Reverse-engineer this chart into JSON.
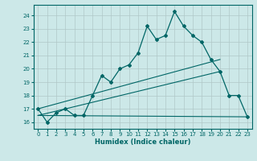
{
  "xlabel": "Humidex (Indice chaleur)",
  "ylabel": "",
  "background_color": "#cce8e8",
  "grid_color": "#b0c8c8",
  "line_color": "#006666",
  "xlim": [
    -0.5,
    23.5
  ],
  "ylim": [
    15.5,
    24.8
  ],
  "xticks": [
    0,
    1,
    2,
    3,
    4,
    5,
    6,
    7,
    8,
    9,
    10,
    11,
    12,
    13,
    14,
    15,
    16,
    17,
    18,
    19,
    20,
    21,
    22,
    23
  ],
  "yticks": [
    16,
    17,
    18,
    19,
    20,
    21,
    22,
    23,
    24
  ],
  "main_series_x": [
    0,
    1,
    2,
    3,
    4,
    5,
    6,
    7,
    8,
    9,
    10,
    11,
    12,
    13,
    14,
    15,
    16,
    17,
    18,
    19,
    20,
    21,
    22,
    23
  ],
  "main_series_y": [
    17.0,
    16.0,
    16.7,
    17.0,
    16.5,
    16.5,
    18.0,
    19.5,
    19.0,
    20.0,
    20.3,
    21.2,
    23.2,
    22.2,
    22.5,
    24.3,
    23.2,
    22.5,
    22.0,
    20.7,
    19.8,
    18.0,
    18.0,
    16.4
  ],
  "line1_x": [
    0,
    23
  ],
  "line1_y": [
    16.5,
    16.4
  ],
  "line2_x": [
    0,
    20
  ],
  "line2_y": [
    17.0,
    20.7
  ],
  "line3_x": [
    0,
    20
  ],
  "line3_y": [
    16.5,
    19.8
  ]
}
